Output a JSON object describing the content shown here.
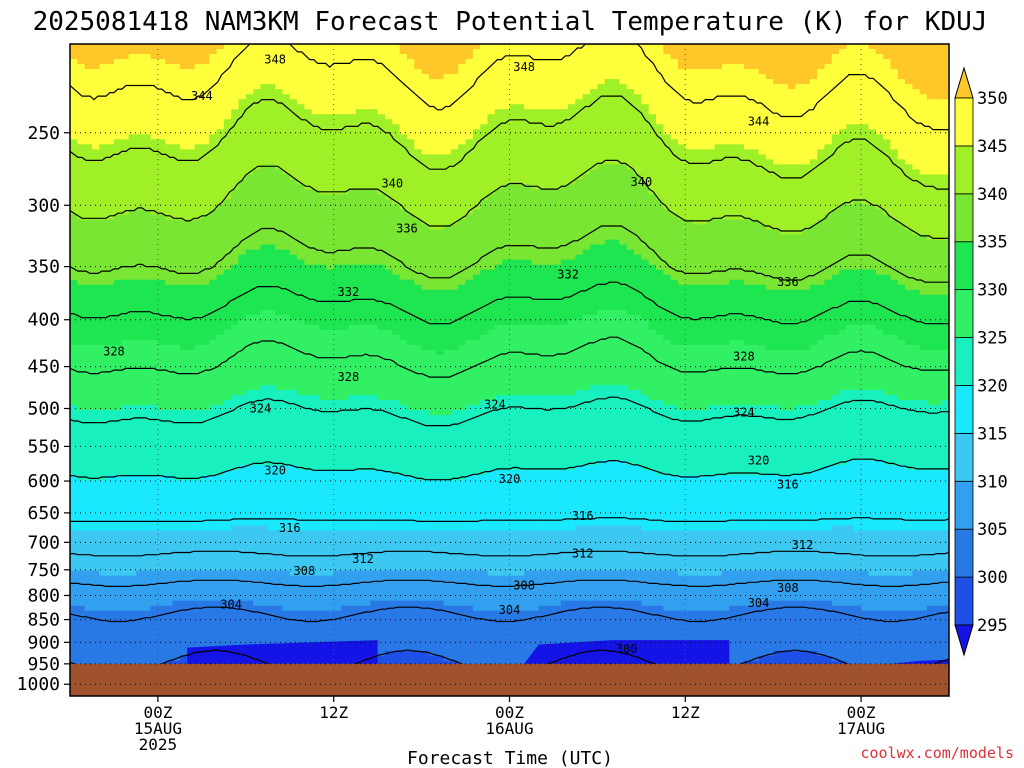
{
  "chart_data": {
    "type": "heatmap",
    "title": "2025081418 NAM3KM Forecast Potential Temperature (K) for KDUJ",
    "xlabel": "Forecast Time (UTC)",
    "ylabel": "",
    "x_ticks": [
      {
        "hour": 6,
        "lines": [
          "00Z",
          "15AUG",
          "2025"
        ]
      },
      {
        "hour": 18,
        "lines": [
          "12Z"
        ]
      },
      {
        "hour": 30,
        "lines": [
          "00Z",
          "16AUG"
        ]
      },
      {
        "hour": 42,
        "lines": [
          "12Z"
        ]
      },
      {
        "hour": 54,
        "lines": [
          "00Z",
          "17AUG"
        ]
      }
    ],
    "x_range_hours": [
      0,
      60
    ],
    "y_axis_scale": "log-pressure",
    "y_range_hPa": [
      1030,
      200
    ],
    "y_ticks": [
      250,
      300,
      350,
      400,
      450,
      500,
      550,
      600,
      650,
      700,
      750,
      800,
      850,
      900,
      950,
      1000
    ],
    "surface_pressure_hPa": 950,
    "grid": true,
    "colorbar": {
      "levels": [
        295,
        300,
        305,
        310,
        315,
        320,
        325,
        330,
        335,
        340,
        345,
        350
      ],
      "colors": [
        "#1414e6",
        "#1e50e6",
        "#2878e6",
        "#32a0ee",
        "#3cc8f0",
        "#19e8ff",
        "#19f0c0",
        "#32f064",
        "#1ee650",
        "#78e632",
        "#a0f028",
        "#ffff3c",
        "#ffc828"
      ],
      "units": "K"
    },
    "contour_levels": [
      300,
      304,
      308,
      312,
      316,
      320,
      324,
      328,
      332,
      336,
      340,
      344,
      348
    ],
    "contour_labels": [
      {
        "value": "348",
        "hour": 14,
        "hPa": 208
      },
      {
        "value": "348",
        "hour": 31,
        "hPa": 212
      },
      {
        "value": "344",
        "hour": 9,
        "hPa": 228
      },
      {
        "value": "344",
        "hour": 47,
        "hPa": 243
      },
      {
        "value": "340",
        "hour": 22,
        "hPa": 284
      },
      {
        "value": "340",
        "hour": 39,
        "hPa": 283
      },
      {
        "value": "336",
        "hour": 23,
        "hPa": 318
      },
      {
        "value": "336",
        "hour": 49,
        "hPa": 364
      },
      {
        "value": "332",
        "hour": 34,
        "hPa": 357
      },
      {
        "value": "332",
        "hour": 19,
        "hPa": 373
      },
      {
        "value": "328",
        "hour": 3,
        "hPa": 433
      },
      {
        "value": "328",
        "hour": 19,
        "hPa": 462
      },
      {
        "value": "328",
        "hour": 46,
        "hPa": 439
      },
      {
        "value": "324",
        "hour": 13,
        "hPa": 500
      },
      {
        "value": "324",
        "hour": 29,
        "hPa": 495
      },
      {
        "value": "324",
        "hour": 46,
        "hPa": 505
      },
      {
        "value": "320",
        "hour": 14,
        "hPa": 584
      },
      {
        "value": "320",
        "hour": 30,
        "hPa": 597
      },
      {
        "value": "320",
        "hour": 47,
        "hPa": 570
      },
      {
        "value": "316",
        "hour": 49,
        "hPa": 605
      },
      {
        "value": "316",
        "hour": 35,
        "hPa": 655
      },
      {
        "value": "316",
        "hour": 15,
        "hPa": 675
      },
      {
        "value": "312",
        "hour": 50,
        "hPa": 705
      },
      {
        "value": "312",
        "hour": 20,
        "hPa": 730
      },
      {
        "value": "312",
        "hour": 35,
        "hPa": 720
      },
      {
        "value": "308",
        "hour": 16,
        "hPa": 752
      },
      {
        "value": "308",
        "hour": 31,
        "hPa": 780
      },
      {
        "value": "308",
        "hour": 49,
        "hPa": 785
      },
      {
        "value": "304",
        "hour": 11,
        "hPa": 818
      },
      {
        "value": "304",
        "hour": 30,
        "hPa": 830
      },
      {
        "value": "304",
        "hour": 47,
        "hPa": 815
      },
      {
        "value": "300",
        "hour": 38,
        "hPa": 915
      }
    ],
    "fields": [
      {
        "name": "300",
        "color": "#1414e6",
        "top": [
          [
            8,
            912
          ],
          [
            12,
            905
          ],
          [
            21,
            895
          ],
          [
            21,
            950
          ],
          [
            8,
            950
          ]
        ]
      },
      {
        "name": "300b",
        "color": "#1414e6",
        "top": [
          [
            31,
            950
          ],
          [
            32,
            905
          ],
          [
            37,
            895
          ],
          [
            45,
            895
          ],
          [
            45,
            950
          ]
        ]
      },
      {
        "name": "300c",
        "color": "#1414e6",
        "top": [
          [
            56,
            950
          ],
          [
            58,
            943
          ],
          [
            60,
            940
          ],
          [
            60,
            950
          ]
        ]
      }
    ]
  },
  "credit": "coolwx.com/models"
}
